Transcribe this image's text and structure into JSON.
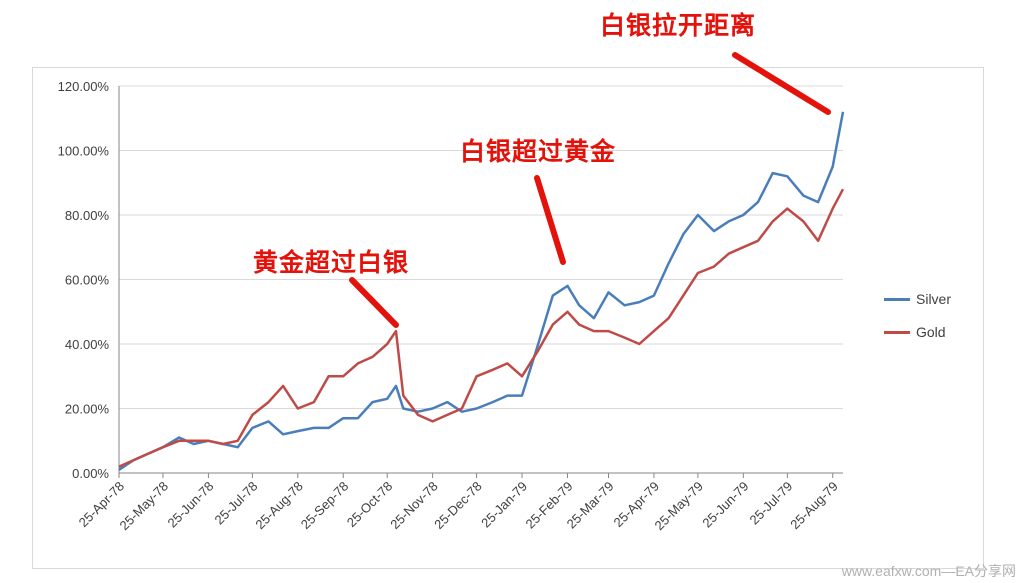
{
  "annotations": {
    "silver_widens": "白银拉开距离",
    "silver_over_gold": "白银超过黄金",
    "gold_over_silver": "黄金超过白银"
  },
  "watermark": "www.eafxw.com—EA分享网",
  "colors": {
    "silver": "#4a7ebb",
    "gold": "#be4b48",
    "annotation": "#e3120b",
    "grid": "#d9d9d9"
  },
  "chart_data": {
    "type": "line",
    "title": "",
    "xlabel": "",
    "ylabel": "",
    "ylim": [
      0,
      120
    ],
    "y_ticks": [
      "0.00%",
      "20.00%",
      "40.00%",
      "60.00%",
      "80.00%",
      "100.00%",
      "120.00%"
    ],
    "x_ticks": [
      "25-Apr-78",
      "25-May-78",
      "25-Jun-78",
      "25-Jul-78",
      "25-Aug-78",
      "25-Sep-78",
      "25-Oct-78",
      "25-Nov-78",
      "25-Dec-78",
      "25-Jan-79",
      "25-Feb-79",
      "25-Mar-79",
      "25-Apr-79",
      "25-May-79",
      "25-Jun-79",
      "25-Jul-79",
      "25-Aug-79"
    ],
    "legend": "right",
    "grid": true,
    "x": [
      "1978-04-25",
      "1978-05-05",
      "1978-05-15",
      "1978-05-25",
      "1978-06-05",
      "1978-06-15",
      "1978-06-25",
      "1978-07-05",
      "1978-07-15",
      "1978-07-25",
      "1978-08-05",
      "1978-08-15",
      "1978-08-25",
      "1978-09-05",
      "1978-09-15",
      "1978-09-25",
      "1978-10-05",
      "1978-10-15",
      "1978-10-25",
      "1978-10-31",
      "1978-11-05",
      "1978-11-15",
      "1978-11-25",
      "1978-12-05",
      "1978-12-15",
      "1978-12-25",
      "1979-01-05",
      "1979-01-15",
      "1979-01-25",
      "1979-02-05",
      "1979-02-15",
      "1979-02-25",
      "1979-03-05",
      "1979-03-15",
      "1979-03-25",
      "1979-04-05",
      "1979-04-15",
      "1979-04-25",
      "1979-05-05",
      "1979-05-15",
      "1979-05-25",
      "1979-06-05",
      "1979-06-15",
      "1979-06-25",
      "1979-07-05",
      "1979-07-15",
      "1979-07-25",
      "1979-08-05",
      "1979-08-15",
      "1979-08-25",
      "1979-09-01"
    ],
    "series": [
      {
        "name": "Silver",
        "values": [
          1,
          4,
          6,
          8,
          11,
          9,
          10,
          9,
          8,
          14,
          16,
          12,
          13,
          14,
          14,
          17,
          17,
          22,
          23,
          27,
          20,
          19,
          20,
          22,
          19,
          20,
          22,
          24,
          24,
          40,
          55,
          58,
          52,
          48,
          56,
          52,
          53,
          55,
          65,
          74,
          80,
          75,
          78,
          80,
          84,
          93,
          92,
          86,
          84,
          95,
          112
        ]
      },
      {
        "name": "Gold",
        "values": [
          2,
          4,
          6,
          8,
          10,
          10,
          10,
          9,
          10,
          18,
          22,
          27,
          20,
          22,
          30,
          30,
          34,
          36,
          40,
          44,
          24,
          18,
          16,
          18,
          20,
          30,
          32,
          34,
          30,
          38,
          46,
          50,
          46,
          44,
          44,
          42,
          40,
          44,
          48,
          55,
          62,
          64,
          68,
          70,
          72,
          78,
          82,
          78,
          72,
          82,
          88
        ]
      }
    ]
  }
}
